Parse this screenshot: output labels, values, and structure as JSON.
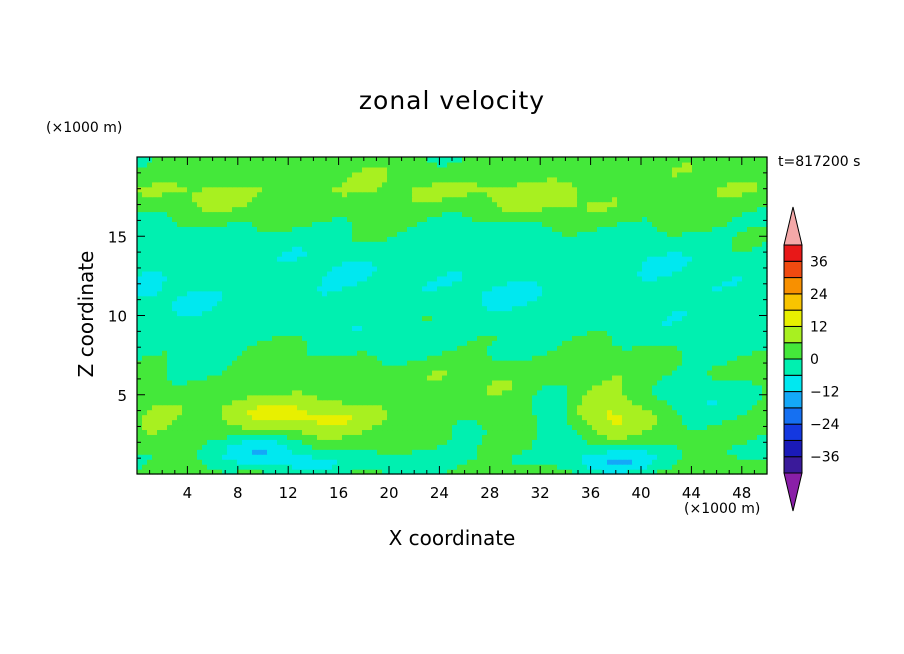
{
  "chart_data": {
    "type": "heatmap",
    "title": "zonal velocity",
    "xlabel": "X coordinate",
    "ylabel": "Z coordinate",
    "x_unit": "(×1000 m)",
    "y_unit": "(×1000 m)",
    "time_label": "t=817200 s",
    "xlim": [
      0,
      50
    ],
    "ylim": [
      0,
      20
    ],
    "x_ticks": [
      4,
      8,
      12,
      16,
      20,
      24,
      28,
      32,
      36,
      40,
      44,
      48
    ],
    "y_ticks": [
      5,
      10,
      15
    ],
    "colorbar": {
      "levels": [
        -42,
        -36,
        -30,
        -24,
        -18,
        -12,
        -6,
        0,
        6,
        12,
        18,
        24,
        30,
        36,
        42
      ],
      "labeled_ticks": [
        36,
        24,
        12,
        0,
        -12,
        -24,
        -36
      ],
      "colors": [
        "#8a1fa8",
        "#3a1a9a",
        "#1a1ab8",
        "#1438e0",
        "#1570f2",
        "#14a8f8",
        "#00e8f0",
        "#00f0b0",
        "#44e83a",
        "#a8f020",
        "#e8f000",
        "#f8c400",
        "#f89000",
        "#f04a10",
        "#e81818",
        "#f4a8a8"
      ],
      "extend": "both"
    },
    "bands": [
      {
        "z": 0.0,
        "v": 1
      },
      {
        "z": 1.0,
        "v": -2
      },
      {
        "z": 2.0,
        "v": 1
      },
      {
        "z": 3.5,
        "v": 3
      },
      {
        "z": 5.0,
        "v": 1
      },
      {
        "z": 6.5,
        "v": 1
      },
      {
        "z": 8.0,
        "v": -1
      },
      {
        "z": 9.5,
        "v": -3
      },
      {
        "z": 11.5,
        "v": -5
      },
      {
        "z": 13.5,
        "v": -4
      },
      {
        "z": 15.0,
        "v": -2
      },
      {
        "z": 16.5,
        "v": 1
      },
      {
        "z": 18.0,
        "v": 4
      },
      {
        "z": 20.0,
        "v": 2
      }
    ],
    "anomalies": [
      {
        "x": 14.0,
        "z": 3.8,
        "rx": 7.5,
        "rz": 1.3,
        "amp": 9
      },
      {
        "x": 9.0,
        "z": 4.5,
        "rx": 3.0,
        "rz": 1.2,
        "amp": 4
      },
      {
        "x": 37.5,
        "z": 3.8,
        "rx": 2.5,
        "rz": 1.8,
        "amp": 10
      },
      {
        "x": 10.0,
        "z": 1.6,
        "rx": 3.5,
        "rz": 0.9,
        "amp": -9
      },
      {
        "x": 38.0,
        "z": 0.8,
        "rx": 3.5,
        "rz": 0.9,
        "amp": -10
      },
      {
        "x": 14.0,
        "z": 0.5,
        "rx": 3.0,
        "rz": 0.6,
        "amp": -6
      },
      {
        "x": 33.0,
        "z": 3.8,
        "rx": 1.5,
        "rz": 1.5,
        "amp": -8
      },
      {
        "x": 26.0,
        "z": 3.0,
        "rx": 1.2,
        "rz": 1.6,
        "amp": -5
      },
      {
        "x": 44.5,
        "z": 4.5,
        "rx": 3.0,
        "rz": 1.8,
        "amp": -6
      },
      {
        "x": 46.5,
        "z": 0.7,
        "rx": 3.0,
        "rz": 0.6,
        "amp": 7
      },
      {
        "x": 32.0,
        "z": 17.3,
        "rx": 15.0,
        "rz": 1.3,
        "amp": 4
      },
      {
        "x": 8.0,
        "z": 17.5,
        "rx": 7.0,
        "rz": 1.0,
        "amp": 3
      },
      {
        "x": 30.0,
        "z": 6.2,
        "rx": 10.0,
        "rz": 1.2,
        "amp": 4
      },
      {
        "x": 1.5,
        "z": 3.0,
        "rx": 1.5,
        "rz": 1.5,
        "amp": 4
      }
    ]
  }
}
